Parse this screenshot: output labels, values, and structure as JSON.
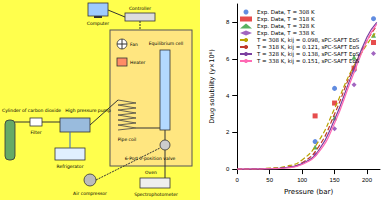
{
  "diagram": {
    "nodes": [
      {
        "label": "Computer"
      },
      {
        "label": "Controller"
      },
      {
        "label": "Fan"
      },
      {
        "label": "Heater"
      },
      {
        "label": "Equilibrium cell"
      },
      {
        "label": "Pipe coil"
      },
      {
        "label": "6-Port 2-position valve"
      },
      {
        "label": "Oven"
      },
      {
        "label": "High pressure pump"
      },
      {
        "label": "Refrigerator"
      },
      {
        "label": "Filter"
      },
      {
        "label": "Cylinder of carbon dioxide"
      },
      {
        "label": "Air compressor"
      },
      {
        "label": "Spectrophotometer"
      }
    ]
  },
  "chart_data": {
    "type": "line",
    "x_label": "Pressure (bar)",
    "y_label": "Drug solubility (y×10⁶)",
    "xlim": [
      0,
      220
    ],
    "xticks": [
      0,
      50,
      100,
      150,
      200
    ],
    "ylim": [
      0,
      9
    ],
    "yticks": [
      0,
      2,
      4,
      6,
      8
    ],
    "grid": false,
    "legend": "upper left",
    "series": [
      {
        "name": "Exp. Data, T = 308 K",
        "type": "scatter",
        "marker": "circle",
        "color": "#3a6fd8",
        "x": [
          120,
          150,
          180,
          210
        ],
        "values": [
          1.5,
          4.4,
          5.4,
          8.2
        ]
      },
      {
        "name": "Exp. Data, T = 318 K",
        "type": "scatter",
        "marker": "square",
        "color": "#e02020",
        "x": [
          120,
          150,
          180,
          210
        ],
        "values": [
          2.9,
          3.6,
          5.5,
          6.9
        ]
      },
      {
        "name": "Exp. Data, T = 328 K",
        "type": "scatter",
        "marker": "triangle",
        "color": "#2e9e3a",
        "x": [
          120,
          150,
          180,
          210
        ],
        "values": [
          1.2,
          2.8,
          6.1,
          7.3
        ]
      },
      {
        "name": "Exp. Data, T = 338 K",
        "type": "scatter",
        "marker": "diamond",
        "color": "#8a3fb0",
        "x": [
          120,
          150,
          180,
          210
        ],
        "values": [
          0.8,
          2.2,
          4.6,
          6.3
        ]
      },
      {
        "name": "T = 308 K, kij = 0.098, sPC-SAFT EoS",
        "type": "line",
        "line_style": "dashed",
        "color": "#b8a200",
        "x": [
          0,
          25,
          50,
          75,
          100,
          125,
          150,
          175,
          200,
          215
        ],
        "values": [
          0,
          0.02,
          0.05,
          0.15,
          0.5,
          1.5,
          3.3,
          5.3,
          6.8,
          7.5
        ]
      },
      {
        "name": "T = 318 K, kij = 0.121, sPC-SAFT EoS",
        "type": "line",
        "line_style": "dashed",
        "color": "#c0392b",
        "x": [
          0,
          25,
          50,
          75,
          100,
          125,
          150,
          175,
          200,
          215
        ],
        "values": [
          0,
          0.01,
          0.03,
          0.1,
          0.35,
          1.2,
          3.0,
          5.2,
          7.0,
          7.8
        ]
      },
      {
        "name": "T = 328 K, kij = 0.138, sPC-SAFT EoS",
        "type": "line",
        "line_style": "solid",
        "color": "#7b3fa0",
        "x": [
          0,
          25,
          50,
          75,
          100,
          125,
          150,
          175,
          200,
          215
        ],
        "values": [
          0,
          0.01,
          0.02,
          0.08,
          0.3,
          1.0,
          2.7,
          5.0,
          7.2,
          8.0
        ]
      },
      {
        "name": "T = 338 K, kij = 0.151, sPC-SAFT EoS",
        "type": "line",
        "line_style": "solid",
        "color": "#ff69b4",
        "x": [
          0,
          25,
          50,
          75,
          100,
          125,
          150,
          175,
          200,
          215
        ],
        "values": [
          0,
          0,
          0.02,
          0.06,
          0.25,
          0.9,
          2.5,
          4.8,
          7.0,
          7.9
        ]
      }
    ]
  }
}
